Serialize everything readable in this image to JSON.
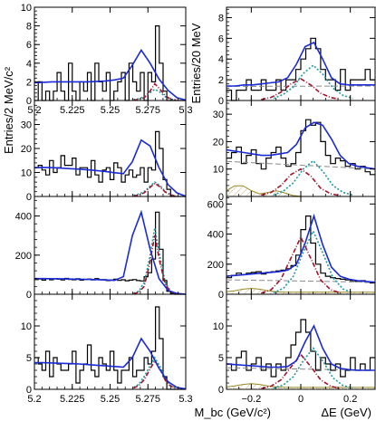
{
  "figure": {
    "ylabel_left": "Entries/2 MeV/c²",
    "ylabel_right": "Entries/20 MeV",
    "xlabel_left": "M_bc (GeV/c²)",
    "xlabel_right": "ΔE (GeV)"
  },
  "chart_data": [
    {
      "type": "bar",
      "panel": "mbc-1",
      "xlim": [
        5.2,
        5.3
      ],
      "ylim": [
        0,
        10
      ],
      "yticks": [
        0,
        2,
        4,
        6,
        8,
        10
      ],
      "xticks": [
        "5.2",
        "5.225",
        "5.25",
        "5.275",
        "5.3"
      ],
      "label": "",
      "values": [
        0,
        2,
        0,
        1,
        0,
        1,
        3,
        1,
        0,
        4,
        1,
        0,
        2,
        1,
        3,
        0,
        4,
        2,
        1,
        3,
        0,
        1,
        2,
        3,
        0,
        4,
        2,
        1,
        3,
        0,
        3,
        2,
        8,
        4,
        1,
        0,
        0,
        0,
        0,
        0
      ],
      "total": [
        1.9,
        1.95,
        2.0,
        2.0,
        2.0,
        2.0,
        2.0,
        2.05,
        2.1,
        2.2,
        2.4,
        3.8,
        5.4,
        4.0,
        2.3,
        1.1,
        0.3,
        0.05
      ],
      "peak_components": [
        [
          0.1,
          0.2,
          0.4,
          0.8,
          1.2,
          0.9,
          0.4,
          0.15,
          0.05
        ],
        [
          0.05,
          0.1,
          0.3,
          0.9,
          1.8,
          1.2,
          0.5,
          0.15,
          0.05
        ]
      ]
    },
    {
      "type": "bar",
      "panel": "mbc-2",
      "xlim": [
        5.2,
        5.3
      ],
      "ylim": [
        0,
        40
      ],
      "yticks": [
        0,
        10,
        20,
        30,
        40
      ],
      "xticks": [],
      "label": "",
      "values": [
        12,
        13,
        11,
        9,
        15,
        10,
        12,
        17,
        13,
        13,
        16,
        9,
        12,
        12,
        8,
        15,
        9,
        6,
        11,
        12,
        7,
        14,
        12,
        6,
        9,
        11,
        8,
        9,
        12,
        6,
        12,
        11,
        27,
        20,
        7,
        3,
        0,
        0,
        0,
        0
      ],
      "total": [
        12.0,
        12.1,
        12.0,
        11.8,
        11.6,
        11.4,
        11.1,
        10.8,
        10.4,
        9.9,
        9.5,
        14.5,
        23.5,
        21.0,
        12.0,
        5.0,
        1.5,
        0.1
      ],
      "peak_components": [
        [
          0.5,
          1,
          2,
          4,
          6,
          4.5,
          2,
          0.8,
          0.2
        ],
        [
          0.2,
          0.6,
          1.5,
          3.5,
          5.5,
          4,
          1.8,
          0.6,
          0.1
        ]
      ]
    },
    {
      "type": "bar",
      "panel": "mbc-3",
      "xlim": [
        5.2,
        5.3
      ],
      "ylim": [
        0,
        500
      ],
      "yticks": [
        0,
        200,
        400
      ],
      "xticks": [],
      "label": "",
      "values": [
        75,
        78,
        72,
        80,
        74,
        79,
        77,
        73,
        81,
        76,
        74,
        79,
        72,
        76,
        78,
        73,
        80,
        74,
        75,
        70,
        73,
        77,
        71,
        74,
        69,
        72,
        75,
        70,
        68,
        90,
        110,
        180,
        420,
        230,
        70,
        15,
        5,
        0,
        0,
        0
      ],
      "total": [
        80,
        80,
        79,
        79,
        78,
        77,
        76,
        75,
        73,
        71,
        90,
        300,
        420,
        230,
        80,
        20,
        4,
        0
      ],
      "peak_components": [
        [
          5,
          15,
          60,
          180,
          340,
          190,
          60,
          15,
          5
        ],
        [
          3,
          10,
          40,
          150,
          300,
          160,
          50,
          12,
          3
        ]
      ]
    },
    {
      "type": "bar",
      "panel": "mbc-4",
      "xlim": [
        5.2,
        5.3
      ],
      "ylim": [
        0,
        15
      ],
      "yticks": [
        0,
        5,
        10,
        15
      ],
      "xticks": [
        "5.2",
        "5.225",
        "5.25",
        "5.275",
        "5.3"
      ],
      "label": "",
      "values": [
        5,
        4,
        3,
        6,
        2,
        5,
        4,
        3,
        3,
        4,
        6,
        1,
        3,
        4,
        7,
        3,
        2,
        5,
        4,
        3,
        6,
        3,
        1,
        3,
        3,
        5,
        2,
        3,
        3,
        5,
        4,
        6,
        13,
        8,
        2,
        0,
        0,
        0,
        0,
        0
      ],
      "total": [
        4.2,
        4.2,
        4.15,
        4.1,
        4.05,
        4.0,
        3.9,
        3.8,
        3.7,
        3.6,
        3.5,
        5.0,
        8.0,
        6.0,
        3.3,
        1.2,
        0.3,
        0.05
      ],
      "peak_components": [
        [
          0.3,
          0.8,
          2,
          3.5,
          5,
          3.6,
          1.6,
          0.6,
          0.2
        ],
        [
          0.2,
          0.6,
          1.5,
          3,
          4.5,
          3.2,
          1.4,
          0.5,
          0.15
        ]
      ]
    },
    {
      "type": "bar",
      "panel": "de-1",
      "xlim": [
        -0.3,
        0.3
      ],
      "ylim": [
        0,
        9
      ],
      "yticks": [
        0,
        2,
        4,
        6,
        8
      ],
      "xticks": [],
      "label": "",
      "values": [
        1,
        0,
        1,
        1,
        2,
        1,
        1,
        2,
        1,
        1,
        2,
        1,
        2,
        2,
        3,
        4,
        5,
        6,
        5,
        3,
        2,
        2,
        1,
        3,
        1,
        2,
        2,
        2,
        3,
        2
      ],
      "total": [
        1.4,
        1.4,
        1.5,
        1.5,
        1.6,
        1.7,
        1.8,
        2.2,
        3.5,
        5.2,
        5.6,
        4.0,
        2.2,
        1.6,
        1.5,
        1.5,
        1.5,
        1.5
      ],
      "peak_components": [
        [
          0.2,
          0.6,
          1.3,
          2.6,
          3.4,
          2.5,
          1.2,
          0.5,
          0.2
        ],
        [
          0.1,
          0.3,
          0.8,
          1.6,
          2.1,
          1.5,
          0.7,
          0.3,
          0.1
        ]
      ]
    },
    {
      "type": "bar",
      "panel": "de-2",
      "xlim": [
        -0.3,
        0.3
      ],
      "ylim": [
        0,
        35
      ],
      "yticks": [
        0,
        10,
        20,
        30
      ],
      "xticks": [],
      "label": "",
      "values": [
        14,
        16,
        18,
        12,
        15,
        17,
        12,
        10,
        14,
        16,
        18,
        14,
        11,
        12,
        16,
        24,
        28,
        26,
        27,
        20,
        15,
        12,
        14,
        13,
        11,
        12,
        10,
        11,
        9,
        8
      ],
      "total": [
        17,
        16.5,
        16,
        15.5,
        15,
        15,
        15.5,
        16,
        19,
        25,
        27,
        26,
        21,
        15,
        12,
        11,
        10.5,
        10
      ],
      "peak_components": [
        [
          0.5,
          2,
          5,
          10,
          13,
          9,
          4,
          1.5,
          0.5
        ],
        [
          0.5,
          1.5,
          4,
          8,
          10,
          7.5,
          3,
          1,
          0.3
        ]
      ]
    },
    {
      "type": "bar",
      "panel": "de-3",
      "xlim": [
        -0.3,
        0.3
      ],
      "ylim": [
        0,
        650
      ],
      "yticks": [
        0,
        200,
        400,
        600
      ],
      "xticks": [],
      "label": "",
      "values": [
        110,
        125,
        140,
        130,
        140,
        145,
        150,
        135,
        145,
        150,
        155,
        160,
        170,
        190,
        260,
        430,
        520,
        340,
        200,
        140,
        120,
        110,
        105,
        100,
        95,
        90,
        85,
        90,
        80,
        75
      ],
      "total": [
        120,
        125,
        130,
        135,
        140,
        145,
        150,
        160,
        200,
        340,
        520,
        330,
        180,
        120,
        100,
        90,
        85,
        80
      ],
      "peak_components": [
        [
          10,
          40,
          120,
          280,
          420,
          270,
          110,
          35,
          10
        ],
        [
          8,
          30,
          100,
          240,
          380,
          240,
          95,
          30,
          8
        ]
      ]
    },
    {
      "type": "bar",
      "panel": "de-4",
      "xlim": [
        -0.3,
        0.3
      ],
      "ylim": [
        0,
        15
      ],
      "yticks": [
        0,
        5,
        10,
        15
      ],
      "xticks": [
        "-0.2",
        "0",
        "0.2"
      ],
      "label": "",
      "values": [
        4,
        3,
        5,
        6,
        3,
        4,
        5,
        3,
        4,
        2,
        4,
        3,
        5,
        7,
        9,
        11,
        9,
        6,
        3,
        5,
        4,
        3,
        4,
        2,
        3,
        5,
        3,
        4,
        3,
        5
      ],
      "total": [
        4.0,
        3.9,
        3.8,
        3.7,
        3.6,
        3.5,
        3.5,
        3.6,
        4.5,
        7.5,
        10.0,
        6.5,
        4.0,
        3.3,
        3.1,
        3.0,
        3.0,
        3.0
      ],
      "peak_components": [
        [
          0.2,
          0.7,
          2,
          4.5,
          6.5,
          4.4,
          1.8,
          0.6,
          0.2
        ],
        [
          0.1,
          0.5,
          1.5,
          3.5,
          5.5,
          3.6,
          1.5,
          0.5,
          0.1
        ]
      ]
    }
  ],
  "colors": {
    "total": "#1a2bd6",
    "comp_red": "#a3132b",
    "comp_teal": "#1c9aa0",
    "comp_gray": "#8a8a8a",
    "comp_olive": "#9a8a25",
    "hist": "#000000",
    "fill_hatch": "#e9d3a8"
  }
}
